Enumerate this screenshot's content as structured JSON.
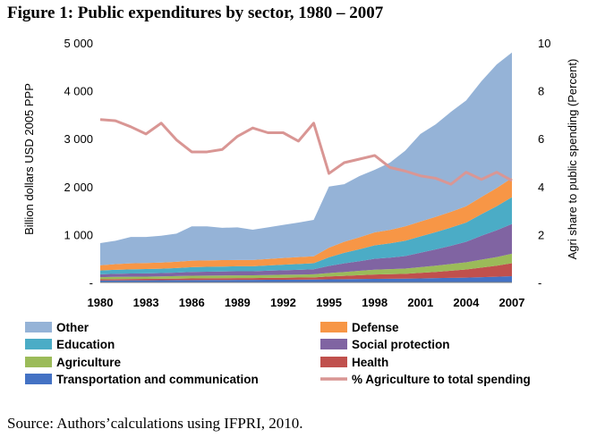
{
  "title": "Figure 1: Public expenditures by sector, 1980 – 2007",
  "source": "Source: Authors’calculations using IFPRI, 2010.",
  "chart_data": {
    "type": "area",
    "x": [
      1980,
      1981,
      1982,
      1983,
      1984,
      1985,
      1986,
      1987,
      1988,
      1989,
      1990,
      1991,
      1992,
      1993,
      1994,
      1995,
      1996,
      1997,
      1998,
      1999,
      2000,
      2001,
      2002,
      2003,
      2004,
      2005,
      2006,
      2007
    ],
    "x_tick_labels": [
      "1980",
      "1983",
      "1986",
      "1989",
      "1992",
      "1995",
      "1998",
      "2001",
      "2004",
      "2007"
    ],
    "x_tick_values": [
      1980,
      1983,
      1986,
      1989,
      1992,
      1995,
      1998,
      2001,
      2004,
      2007
    ],
    "ylabel": "Billion dollars USD 2005 PPP",
    "ylim": [
      0,
      5000
    ],
    "y_tick_labels": [
      "-",
      "1 000",
      "2 000",
      "3 000",
      "4 000",
      "5 000"
    ],
    "y2label": "Agri share to public spending (Percent)",
    "y2lim": [
      0,
      10
    ],
    "y2_tick_labels": [
      "-",
      "2",
      "4",
      "6",
      "8",
      "10"
    ],
    "stacking_order": [
      "Transportation and communication",
      "Health",
      "Agriculture",
      "Social protection",
      "Education",
      "Defense",
      "Other"
    ],
    "series": [
      {
        "name": "Transportation and communication",
        "color": "#4472C4",
        "values": [
          40,
          42,
          44,
          45,
          46,
          48,
          50,
          51,
          52,
          53,
          53,
          55,
          56,
          58,
          60,
          65,
          68,
          72,
          75,
          77,
          80,
          85,
          90,
          95,
          100,
          110,
          120,
          130
        ]
      },
      {
        "name": "Health",
        "color": "#C0504D",
        "values": [
          25,
          27,
          28,
          29,
          30,
          32,
          34,
          35,
          36,
          37,
          38,
          40,
          42,
          44,
          46,
          60,
          70,
          80,
          90,
          95,
          100,
          115,
          130,
          150,
          170,
          200,
          230,
          270
        ]
      },
      {
        "name": "Agriculture",
        "color": "#9BBB59",
        "values": [
          45,
          47,
          48,
          48,
          49,
          52,
          56,
          56,
          57,
          58,
          58,
          60,
          62,
          62,
          65,
          70,
          80,
          90,
          100,
          105,
          110,
          120,
          130,
          140,
          150,
          165,
          180,
          200
        ]
      },
      {
        "name": "Social protection",
        "color": "#8064A2",
        "values": [
          60,
          63,
          66,
          68,
          70,
          74,
          80,
          82,
          84,
          85,
          85,
          90,
          95,
          100,
          105,
          150,
          180,
          200,
          230,
          240,
          260,
          300,
          340,
          380,
          430,
          500,
          560,
          620
        ]
      },
      {
        "name": "Education",
        "color": "#4BACC6",
        "values": [
          80,
          85,
          88,
          90,
          92,
          96,
          100,
          102,
          103,
          104,
          104,
          110,
          115,
          120,
          125,
          180,
          220,
          250,
          280,
          300,
          320,
          340,
          360,
          380,
          400,
          450,
          500,
          560
        ]
      },
      {
        "name": "Defense",
        "color": "#F79646",
        "values": [
          110,
          118,
          124,
          126,
          128,
          130,
          134,
          134,
          134,
          132,
          130,
          135,
          140,
          145,
          145,
          200,
          230,
          250,
          270,
          280,
          300,
          310,
          320,
          330,
          340,
          360,
          380,
          400
        ]
      },
      {
        "name": "Other",
        "color": "#95B3D7",
        "values": [
          460,
          488,
          552,
          544,
          560,
          588,
          716,
          710,
          674,
          681,
          632,
          660,
          690,
          721,
          759,
          1275,
          1202,
          1278,
          1305,
          1403,
          1580,
          1830,
          1930,
          2085,
          2210,
          2415,
          2580,
          2620
        ]
      }
    ],
    "line_series": {
      "name": "% Agriculture to total spending",
      "color": "#D99694",
      "axis": "right",
      "values": [
        6.8,
        6.75,
        6.5,
        6.2,
        6.65,
        5.95,
        5.45,
        5.45,
        5.55,
        6.1,
        6.45,
        6.25,
        6.25,
        5.9,
        6.65,
        4.55,
        5.0,
        5.15,
        5.3,
        4.8,
        4.65,
        4.45,
        4.35,
        4.1,
        4.6,
        4.3,
        4.6,
        4.25
      ]
    },
    "legend": {
      "placement": "bottom",
      "entries": [
        "Other",
        "Defense",
        "Education",
        "Social protection",
        "Agriculture",
        "Health",
        "Transportation and communication",
        "% Agriculture to total spending"
      ]
    }
  }
}
